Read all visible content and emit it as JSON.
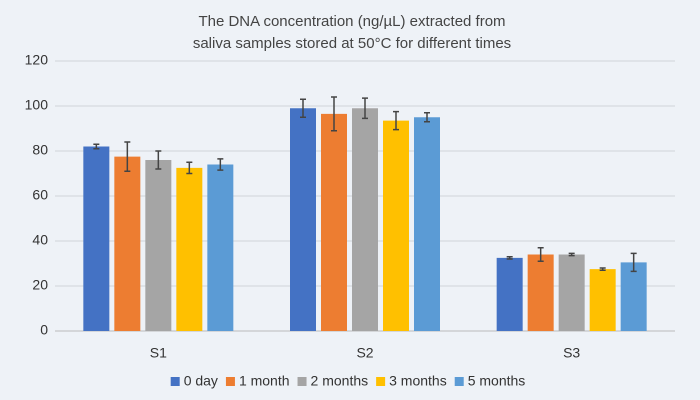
{
  "chart_data": {
    "type": "bar",
    "title": [
      "The DNA concentration (ng/µL) extracted from",
      "saliva samples stored at 50°C for different times"
    ],
    "categories": [
      "S1",
      "S2",
      "S3"
    ],
    "series": [
      {
        "name": "0 day",
        "color": "#4472c4",
        "values": [
          82,
          99,
          32.5
        ],
        "errors": [
          1,
          4,
          0.5
        ]
      },
      {
        "name": "1 month",
        "color": "#ed7d31",
        "values": [
          77.5,
          96.5,
          34
        ],
        "errors": [
          6.5,
          7.5,
          3
        ]
      },
      {
        "name": "2 months",
        "color": "#a5a5a5",
        "values": [
          76,
          99,
          34
        ],
        "errors": [
          4,
          4.5,
          0.5
        ]
      },
      {
        "name": "3 months",
        "color": "#ffc000",
        "values": [
          72.5,
          93.5,
          27.5
        ],
        "errors": [
          2.5,
          4,
          0.5
        ]
      },
      {
        "name": "5 months",
        "color": "#5b9bd5",
        "values": [
          74,
          95,
          30.5
        ],
        "errors": [
          2.5,
          2,
          4
        ]
      }
    ],
    "ylim": [
      0,
      120
    ],
    "yticks": [
      0,
      20,
      40,
      60,
      80,
      100,
      120
    ],
    "grid": true,
    "legend": "bottom"
  }
}
